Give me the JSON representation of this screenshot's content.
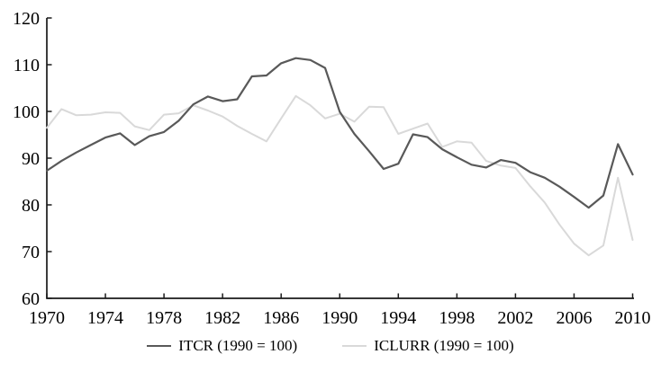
{
  "colors": {
    "itcr_line": "#595959",
    "iclurr_line": "#d9d9d9",
    "axis": "#1a1a1a",
    "text": "#000000",
    "background": "#ffffff"
  },
  "legend": {
    "items": [
      {
        "series": "ITCR",
        "label": "ITCR (1990 = 100)"
      },
      {
        "series": "ICLURR",
        "label": "ICLURR (1990 = 100)"
      }
    ]
  },
  "chart_data": {
    "type": "line",
    "title": "",
    "xlabel": "",
    "ylabel": "",
    "grid": false,
    "legend_position": "bottom-center",
    "xlim": [
      1970,
      2010
    ],
    "ylim": [
      60,
      120
    ],
    "x_ticks": [
      1970,
      1974,
      1978,
      1982,
      1986,
      1990,
      1994,
      1998,
      2002,
      2006,
      2010
    ],
    "y_ticks": [
      60,
      70,
      80,
      90,
      100,
      110,
      120
    ],
    "x": [
      1970,
      1971,
      1972,
      1973,
      1974,
      1975,
      1976,
      1977,
      1978,
      1979,
      1980,
      1981,
      1982,
      1983,
      1984,
      1985,
      1986,
      1987,
      1988,
      1989,
      1990,
      1991,
      1992,
      1993,
      1994,
      1995,
      1996,
      1997,
      1998,
      1999,
      2000,
      2001,
      2002,
      2003,
      2004,
      2005,
      2006,
      2007,
      2008,
      2009,
      2010
    ],
    "series": [
      {
        "name": "ITCR (1990 = 100)",
        "color_key": "itcr_line",
        "values": [
          87.3,
          89.4,
          91.2,
          92.8,
          94.4,
          95.3,
          92.8,
          94.7,
          95.6,
          98.0,
          101.5,
          103.2,
          102.2,
          102.6,
          107.5,
          107.7,
          110.3,
          111.4,
          111.0,
          109.3,
          99.9,
          95.2,
          91.5,
          87.7,
          88.8,
          95.1,
          94.5,
          91.9,
          90.2,
          88.6,
          88.0,
          89.6,
          89.0,
          87.0,
          85.8,
          83.9,
          81.7,
          79.4,
          82.0,
          93.0,
          86.5
        ]
      },
      {
        "name": "ICLURR (1990 = 100)",
        "color_key": "iclurr_line",
        "values": [
          96.5,
          100.5,
          99.2,
          99.3,
          99.8,
          99.7,
          96.8,
          96.0,
          99.3,
          99.6,
          101.3,
          100.2,
          98.9,
          96.9,
          95.2,
          93.6,
          98.5,
          103.3,
          101.3,
          98.5,
          99.5,
          97.8,
          101.0,
          100.9,
          95.2,
          96.3,
          97.4,
          92.4,
          93.6,
          93.3,
          89.4,
          88.4,
          87.9,
          84.0,
          80.5,
          75.8,
          71.7,
          69.2,
          71.3,
          85.8,
          72.5
        ]
      }
    ]
  }
}
